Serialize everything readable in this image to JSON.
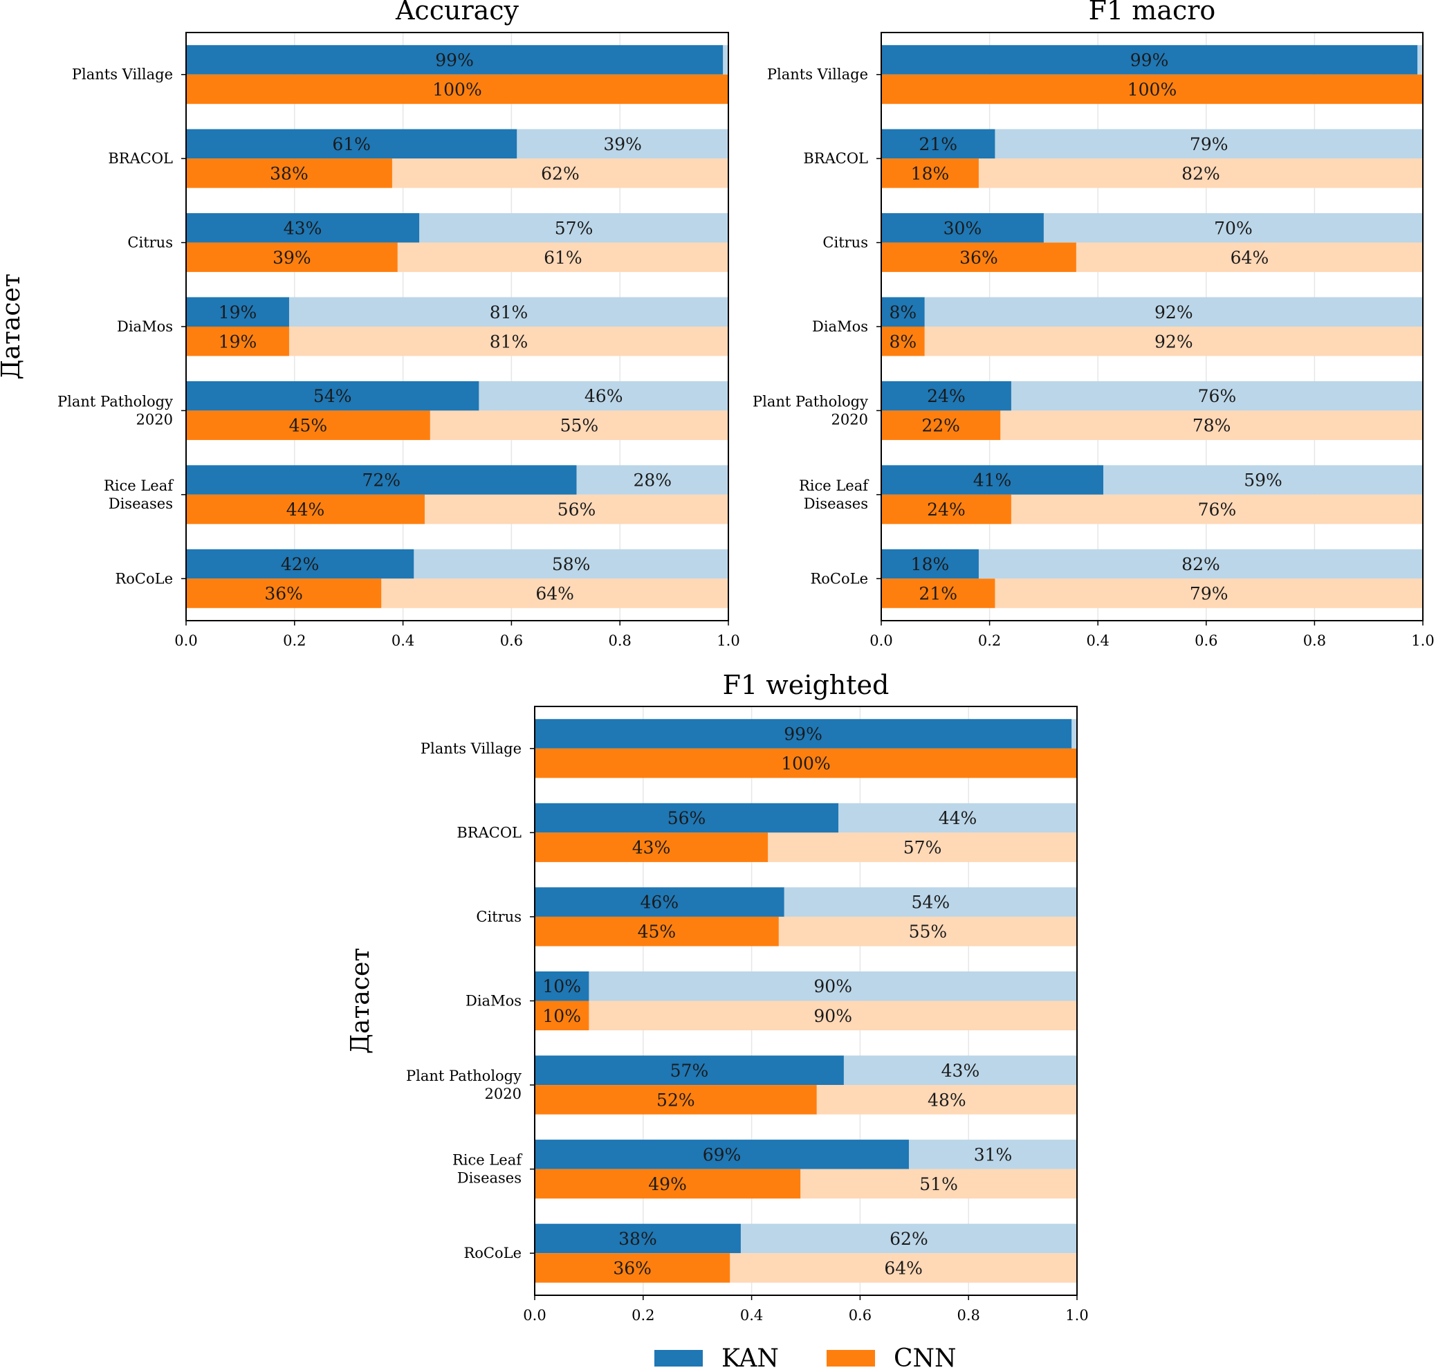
{
  "chart_data": [
    {
      "type": "bar",
      "orientation": "horizontal",
      "stacked_with_complement": true,
      "title": "Accuracy",
      "ylabel": "Датасет",
      "xlim": [
        0,
        1
      ],
      "xticks": [
        "0.0",
        "0.2",
        "0.4",
        "0.6",
        "0.8",
        "1.0"
      ],
      "grid": "vertical",
      "categories": [
        [
          "Plants Village"
        ],
        [
          "BRACOL"
        ],
        [
          "Citrus"
        ],
        [
          "DiaMos"
        ],
        [
          "Plant Pathology",
          "2020"
        ],
        [
          "Rice Leaf",
          "Diseases"
        ],
        [
          "RoCoLe"
        ]
      ],
      "series": [
        {
          "name": "KAN",
          "values": [
            0.99,
            0.61,
            0.43,
            0.19,
            0.54,
            0.72,
            0.42
          ],
          "labels": [
            "99%",
            "61%",
            "43%",
            "19%",
            "54%",
            "72%",
            "42%"
          ],
          "complement_labels": [
            "",
            "39%",
            "57%",
            "81%",
            "46%",
            "28%",
            "58%"
          ]
        },
        {
          "name": "CNN",
          "values": [
            1.0,
            0.38,
            0.39,
            0.19,
            0.45,
            0.44,
            0.36
          ],
          "labels": [
            "100%",
            "38%",
            "39%",
            "19%",
            "45%",
            "44%",
            "36%"
          ],
          "complement_labels": [
            "",
            "62%",
            "61%",
            "81%",
            "55%",
            "56%",
            "64%"
          ]
        }
      ]
    },
    {
      "type": "bar",
      "orientation": "horizontal",
      "stacked_with_complement": true,
      "title": "F1 macro",
      "ylabel": "",
      "xlim": [
        0,
        1
      ],
      "xticks": [
        "0.0",
        "0.2",
        "0.4",
        "0.6",
        "0.8",
        "1.0"
      ],
      "grid": "vertical",
      "categories": [
        [
          "Plants Village"
        ],
        [
          "BRACOL"
        ],
        [
          "Citrus"
        ],
        [
          "DiaMos"
        ],
        [
          "Plant Pathology",
          "2020"
        ],
        [
          "Rice Leaf",
          "Diseases"
        ],
        [
          "RoCoLe"
        ]
      ],
      "series": [
        {
          "name": "KAN",
          "values": [
            0.99,
            0.21,
            0.3,
            0.08,
            0.24,
            0.41,
            0.18
          ],
          "labels": [
            "99%",
            "21%",
            "30%",
            "8%",
            "24%",
            "41%",
            "18%"
          ],
          "complement_labels": [
            "",
            "79%",
            "70%",
            "92%",
            "76%",
            "59%",
            "82%"
          ]
        },
        {
          "name": "CNN",
          "values": [
            1.0,
            0.18,
            0.36,
            0.08,
            0.22,
            0.24,
            0.21
          ],
          "labels": [
            "100%",
            "18%",
            "36%",
            "8%",
            "22%",
            "24%",
            "21%"
          ],
          "complement_labels": [
            "",
            "82%",
            "64%",
            "92%",
            "78%",
            "76%",
            "79%"
          ]
        }
      ]
    },
    {
      "type": "bar",
      "orientation": "horizontal",
      "stacked_with_complement": true,
      "title": "F1 weighted",
      "ylabel": "Датасет",
      "xlim": [
        0,
        1
      ],
      "xticks": [
        "0.0",
        "0.2",
        "0.4",
        "0.6",
        "0.8",
        "1.0"
      ],
      "grid": "vertical",
      "categories": [
        [
          "Plants Village"
        ],
        [
          "BRACOL"
        ],
        [
          "Citrus"
        ],
        [
          "DiaMos"
        ],
        [
          "Plant Pathology",
          "2020"
        ],
        [
          "Rice Leaf",
          "Diseases"
        ],
        [
          "RoCoLe"
        ]
      ],
      "series": [
        {
          "name": "KAN",
          "values": [
            0.99,
            0.56,
            0.46,
            0.1,
            0.57,
            0.69,
            0.38
          ],
          "labels": [
            "99%",
            "56%",
            "46%",
            "10%",
            "57%",
            "69%",
            "38%"
          ],
          "complement_labels": [
            "",
            "44%",
            "54%",
            "90%",
            "43%",
            "31%",
            "62%"
          ]
        },
        {
          "name": "CNN",
          "values": [
            1.0,
            0.43,
            0.45,
            0.1,
            0.52,
            0.49,
            0.36
          ],
          "labels": [
            "100%",
            "43%",
            "45%",
            "10%",
            "52%",
            "49%",
            "36%"
          ],
          "complement_labels": [
            "",
            "57%",
            "55%",
            "90%",
            "48%",
            "51%",
            "64%"
          ]
        }
      ]
    }
  ],
  "legend": {
    "placement": "bottom-center",
    "items": [
      {
        "label": "KAN",
        "color": "#1f77b4"
      },
      {
        "label": "CNN",
        "color": "#ff7f0e"
      }
    ]
  },
  "colors": {
    "kan": "#1f77b4",
    "kan_light": "#bbd6e8",
    "cnn": "#ff7f0e",
    "cnn_light": "#ffd8b6"
  }
}
